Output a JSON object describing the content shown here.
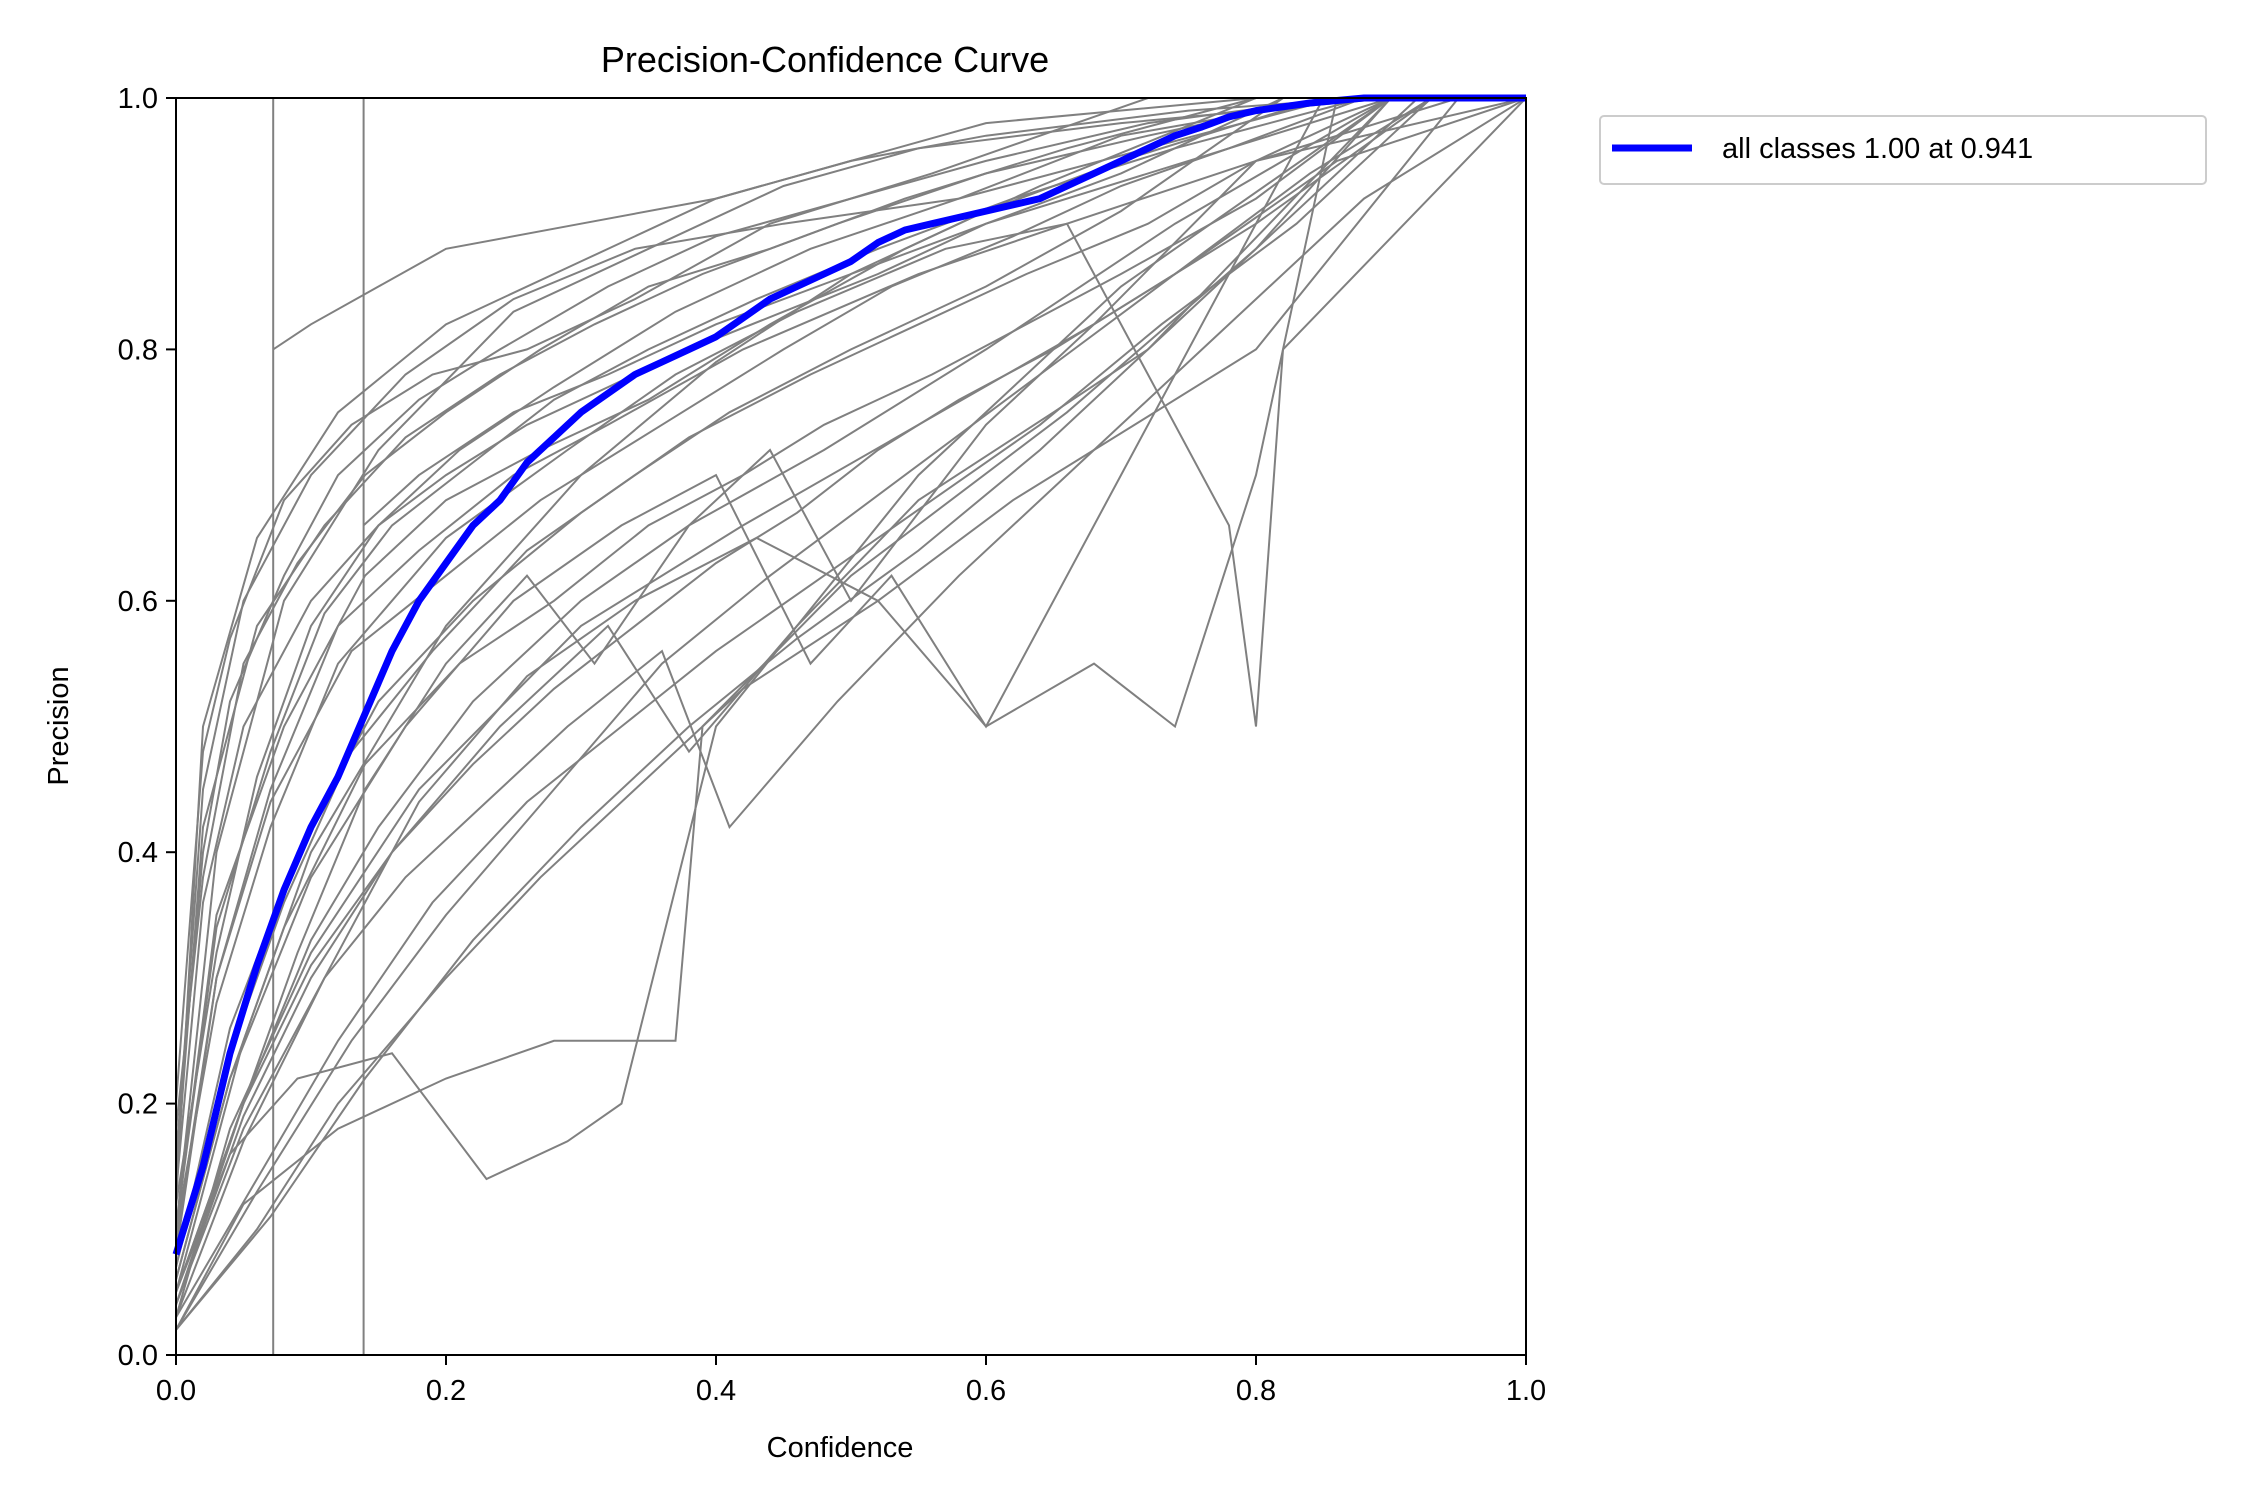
{
  "chart_data": {
    "type": "line",
    "title": "Precision-Confidence Curve",
    "xlabel": "Confidence",
    "ylabel": "Precision",
    "xlim": [
      0.0,
      1.0
    ],
    "ylim": [
      0.0,
      1.0
    ],
    "xticks": [
      "0.0",
      "0.2",
      "0.4",
      "0.6",
      "0.8",
      "1.0"
    ],
    "yticks": [
      "0.0",
      "0.2",
      "0.4",
      "0.6",
      "0.8",
      "1.0"
    ],
    "grid": false,
    "legend": {
      "placement": "outside-top-right",
      "entries": [
        "all classes 1.00 at 0.941"
      ]
    },
    "colors": {
      "per_class": "#808080",
      "all_classes": "#0000ff"
    },
    "series": [
      {
        "name": "all classes 1.00 at 0.941",
        "color": "#0000ff",
        "x": [
          0.0,
          0.02,
          0.04,
          0.06,
          0.08,
          0.1,
          0.12,
          0.14,
          0.16,
          0.18,
          0.2,
          0.22,
          0.24,
          0.26,
          0.28,
          0.3,
          0.32,
          0.34,
          0.36,
          0.38,
          0.4,
          0.42,
          0.44,
          0.46,
          0.48,
          0.5,
          0.52,
          0.54,
          0.56,
          0.58,
          0.6,
          0.62,
          0.64,
          0.66,
          0.68,
          0.7,
          0.72,
          0.74,
          0.76,
          0.78,
          0.8,
          0.82,
          0.84,
          0.86,
          0.88,
          0.9,
          0.92,
          0.941,
          0.96,
          0.98,
          1.0
        ],
        "y": [
          0.08,
          0.15,
          0.24,
          0.31,
          0.37,
          0.42,
          0.46,
          0.51,
          0.56,
          0.6,
          0.63,
          0.66,
          0.68,
          0.71,
          0.73,
          0.75,
          0.765,
          0.78,
          0.79,
          0.8,
          0.81,
          0.825,
          0.84,
          0.85,
          0.86,
          0.87,
          0.885,
          0.895,
          0.9,
          0.905,
          0.91,
          0.915,
          0.92,
          0.93,
          0.94,
          0.95,
          0.96,
          0.97,
          0.977,
          0.985,
          0.99,
          0.993,
          0.996,
          0.998,
          1.0,
          1.0,
          1.0,
          1.0,
          1.0,
          1.0,
          1.0
        ]
      }
    ],
    "per_class_curves": [
      {
        "x": [
          0,
          0.05,
          0.1,
          0.2,
          0.3,
          0.4,
          0.5,
          0.6,
          0.7,
          0.85,
          1.0
        ],
        "y": [
          0.05,
          0.25,
          0.4,
          0.58,
          0.7,
          0.79,
          0.86,
          0.91,
          0.95,
          1.0,
          1.0
        ]
      },
      {
        "x": [
          0,
          0.03,
          0.08,
          0.15,
          0.25,
          0.35,
          0.45,
          0.55,
          0.7,
          0.9,
          1.0
        ],
        "y": [
          0.1,
          0.4,
          0.6,
          0.72,
          0.83,
          0.88,
          0.93,
          0.96,
          0.98,
          1.0,
          1.0
        ]
      },
      {
        "x": [
          0,
          0.04,
          0.1,
          0.18,
          0.3,
          0.42,
          0.55,
          0.68,
          0.8,
          0.93,
          1.0
        ],
        "y": [
          0.03,
          0.18,
          0.32,
          0.45,
          0.58,
          0.66,
          0.74,
          0.82,
          0.9,
          1.0,
          1.0
        ]
      },
      {
        "x": [
          0,
          0.02,
          0.06,
          0.12,
          0.2,
          0.3,
          0.4,
          0.5,
          0.6,
          0.75,
          0.88,
          1.0
        ],
        "y": [
          0.12,
          0.5,
          0.65,
          0.75,
          0.82,
          0.87,
          0.92,
          0.95,
          0.97,
          0.99,
          1.0,
          1.0
        ]
      },
      {
        "x": [
          0,
          0.05,
          0.12,
          0.2,
          0.28,
          0.37,
          0.39,
          0.5,
          0.66,
          0.8,
          0.9,
          1.0
        ],
        "y": [
          0.02,
          0.12,
          0.18,
          0.22,
          0.25,
          0.25,
          0.5,
          0.62,
          0.75,
          0.88,
          1.0,
          1.0
        ]
      },
      {
        "x": [
          0,
          0.04,
          0.09,
          0.16,
          0.23,
          0.29,
          0.33,
          0.4,
          0.55,
          0.7,
          0.9,
          1.0
        ],
        "y": [
          0.05,
          0.16,
          0.22,
          0.24,
          0.14,
          0.17,
          0.2,
          0.5,
          0.7,
          0.85,
          1.0,
          1.0
        ]
      },
      {
        "x": [
          0,
          0.03,
          0.07,
          0.12,
          0.18,
          0.25,
          0.32,
          0.42,
          0.55,
          0.66,
          0.8,
          0.95,
          1.0
        ],
        "y": [
          0.08,
          0.3,
          0.45,
          0.58,
          0.64,
          0.7,
          0.74,
          0.8,
          0.86,
          0.9,
          0.95,
          1.0,
          1.0
        ]
      },
      {
        "x": [
          0,
          0.02,
          0.05,
          0.1,
          0.17,
          0.25,
          0.34,
          0.45,
          0.58,
          0.72,
          0.86,
          1.0
        ],
        "y": [
          0.15,
          0.45,
          0.6,
          0.7,
          0.78,
          0.84,
          0.88,
          0.9,
          0.92,
          0.96,
          1.0,
          1.0
        ]
      },
      {
        "x": [
          0,
          0.05,
          0.1,
          0.15,
          0.22,
          0.3,
          0.38,
          0.48,
          0.6,
          0.74,
          0.9,
          1.0
        ],
        "y": [
          0.04,
          0.2,
          0.33,
          0.42,
          0.52,
          0.6,
          0.66,
          0.72,
          0.8,
          0.9,
          1.0,
          1.0
        ]
      },
      {
        "x": [
          0,
          0.03,
          0.08,
          0.14,
          0.2,
          0.27,
          0.35,
          0.44,
          0.54,
          0.64,
          0.8,
          1.0
        ],
        "y": [
          0.1,
          0.35,
          0.5,
          0.62,
          0.68,
          0.72,
          0.76,
          0.82,
          0.88,
          0.93,
          1.0,
          1.0
        ]
      },
      {
        "x": [
          0,
          0.06,
          0.12,
          0.2,
          0.27,
          0.34,
          0.42,
          0.52,
          0.62,
          0.8,
          0.95,
          1.0
        ],
        "y": [
          0.02,
          0.1,
          0.2,
          0.3,
          0.38,
          0.45,
          0.53,
          0.6,
          0.68,
          0.8,
          1.0,
          1.0
        ]
      },
      {
        "x": [
          0,
          0.02,
          0.04,
          0.08,
          0.13,
          0.19,
          0.26,
          0.34,
          0.44,
          0.56,
          0.72,
          1.0
        ],
        "y": [
          0.2,
          0.48,
          0.57,
          0.68,
          0.74,
          0.78,
          0.8,
          0.84,
          0.9,
          0.94,
          1.0,
          1.0
        ]
      },
      {
        "x": [
          0,
          0.04,
          0.1,
          0.17,
          0.25,
          0.33,
          0.4,
          0.47,
          0.53,
          0.6,
          0.7,
          0.85,
          1.0
        ],
        "y": [
          0.06,
          0.22,
          0.38,
          0.5,
          0.6,
          0.66,
          0.7,
          0.55,
          0.62,
          0.5,
          0.7,
          1.0,
          1.0
        ]
      },
      {
        "x": [
          0,
          0.05,
          0.11,
          0.18,
          0.26,
          0.34,
          0.43,
          0.52,
          0.6,
          0.68,
          0.74,
          0.8,
          0.86,
          1.0
        ],
        "y": [
          0.03,
          0.17,
          0.3,
          0.44,
          0.54,
          0.6,
          0.65,
          0.6,
          0.5,
          0.55,
          0.5,
          0.7,
          1.0,
          1.0
        ]
      },
      {
        "x": [
          0,
          0.03,
          0.07,
          0.12,
          0.2,
          0.29,
          0.37,
          0.46,
          0.57,
          0.66,
          0.78,
          0.8,
          0.82,
          1.0
        ],
        "y": [
          0.1,
          0.28,
          0.42,
          0.55,
          0.65,
          0.72,
          0.78,
          0.83,
          0.88,
          0.9,
          0.66,
          0.5,
          0.8,
          1.0
        ]
      },
      {
        "x": [
          0,
          0.06,
          0.13,
          0.2,
          0.28,
          0.36,
          0.44,
          0.54,
          0.64,
          0.74,
          0.84,
          0.93,
          1.0
        ],
        "y": [
          0.02,
          0.13,
          0.25,
          0.35,
          0.45,
          0.55,
          0.62,
          0.7,
          0.78,
          0.86,
          0.94,
          1.0,
          1.0
        ]
      },
      {
        "x": [
          0,
          0.02,
          0.05,
          0.09,
          0.14,
          0.2,
          0.27,
          0.35,
          0.44,
          0.54,
          0.66,
          0.8,
          1.0
        ],
        "y": [
          0.18,
          0.38,
          0.55,
          0.63,
          0.7,
          0.75,
          0.8,
          0.85,
          0.88,
          0.92,
          0.96,
          1.0,
          1.0
        ]
      },
      {
        "x": [
          0,
          0.04,
          0.08,
          0.13,
          0.19,
          0.26,
          0.34,
          0.41,
          0.5,
          0.6,
          0.7,
          0.82,
          1.0
        ],
        "y": [
          0.07,
          0.24,
          0.36,
          0.48,
          0.56,
          0.64,
          0.7,
          0.75,
          0.8,
          0.85,
          0.91,
          1.0,
          1.0
        ]
      },
      {
        "x": [
          0,
          0.05,
          0.1,
          0.16,
          0.24,
          0.32,
          0.38,
          0.46,
          0.55,
          0.65,
          0.72,
          0.9,
          1.0
        ],
        "y": [
          0.04,
          0.19,
          0.3,
          0.4,
          0.5,
          0.58,
          0.48,
          0.58,
          0.68,
          0.75,
          0.8,
          1.0,
          1.0
        ]
      },
      {
        "x": [
          0,
          0.03,
          0.06,
          0.1,
          0.15,
          0.21,
          0.28,
          0.37,
          0.47,
          0.58,
          0.7,
          0.86,
          1.0
        ],
        "y": [
          0.12,
          0.32,
          0.46,
          0.58,
          0.66,
          0.72,
          0.77,
          0.83,
          0.88,
          0.92,
          0.97,
          1.0,
          1.0
        ]
      },
      {
        "x": [
          0,
          0.07,
          0.14,
          0.22,
          0.3,
          0.38,
          0.46,
          0.55,
          0.64,
          0.72,
          0.82,
          0.92,
          1.0
        ],
        "y": [
          0.02,
          0.11,
          0.22,
          0.33,
          0.42,
          0.5,
          0.57,
          0.64,
          0.72,
          0.8,
          0.9,
          1.0,
          1.0
        ]
      },
      {
        "x": [
          0,
          0.02,
          0.06,
          0.11,
          0.17,
          0.24,
          0.31,
          0.39,
          0.49,
          0.6,
          0.72,
          0.85,
          1.0
        ],
        "y": [
          0.14,
          0.42,
          0.58,
          0.66,
          0.73,
          0.78,
          0.82,
          0.86,
          0.9,
          0.94,
          0.97,
          1.0,
          1.0
        ]
      },
      {
        "x": [
          0,
          0.05,
          0.09,
          0.14,
          0.2,
          0.26,
          0.31,
          0.38,
          0.44,
          0.5,
          0.6,
          0.68,
          0.8,
          1.0
        ],
        "y": [
          0.05,
          0.2,
          0.32,
          0.45,
          0.55,
          0.62,
          0.55,
          0.66,
          0.72,
          0.6,
          0.74,
          0.82,
          0.95,
          1.0
        ]
      },
      {
        "x": [
          0,
          0.04,
          0.08,
          0.14,
          0.21,
          0.28,
          0.35,
          0.42,
          0.48,
          0.56,
          0.63,
          0.7,
          0.8,
          0.9,
          1.0
        ],
        "y": [
          0.06,
          0.22,
          0.34,
          0.47,
          0.55,
          0.6,
          0.66,
          0.7,
          0.74,
          0.78,
          0.82,
          0.86,
          0.92,
          1.0,
          1.0
        ]
      },
      {
        "x": [
          0,
          0.03,
          0.07,
          0.13,
          0.2,
          0.27,
          0.36,
          0.45,
          0.53,
          0.62,
          0.7,
          0.78,
          0.88,
          1.0
        ],
        "y": [
          0.09,
          0.3,
          0.44,
          0.56,
          0.62,
          0.68,
          0.74,
          0.8,
          0.85,
          0.89,
          0.93,
          0.96,
          1.0,
          1.0
        ]
      },
      {
        "x": [
          0,
          0.05,
          0.11,
          0.17,
          0.23,
          0.29,
          0.36,
          0.41,
          0.49,
          0.58,
          0.66,
          0.76,
          0.88,
          1.0
        ],
        "y": [
          0.04,
          0.18,
          0.3,
          0.38,
          0.44,
          0.5,
          0.56,
          0.42,
          0.52,
          0.62,
          0.7,
          0.8,
          0.92,
          1.0
        ]
      },
      {
        "x": [
          0,
          0.02,
          0.04,
          0.08,
          0.12,
          0.18,
          0.24,
          0.32,
          0.4,
          0.5,
          0.6,
          0.72,
          0.86,
          1.0
        ],
        "y": [
          0.16,
          0.4,
          0.52,
          0.62,
          0.7,
          0.76,
          0.8,
          0.85,
          0.89,
          0.92,
          0.95,
          0.98,
          1.0,
          1.0
        ]
      },
      {
        "x": [
          0,
          0.06,
          0.12,
          0.19,
          0.26,
          0.33,
          0.4,
          0.48,
          0.56,
          0.64,
          0.73,
          0.83,
          0.93,
          1.0
        ],
        "y": [
          0.03,
          0.14,
          0.25,
          0.36,
          0.44,
          0.5,
          0.56,
          0.62,
          0.68,
          0.74,
          0.82,
          0.9,
          1.0,
          1.0
        ]
      },
      {
        "x": [
          0,
          0.04,
          0.09,
          0.15,
          0.22,
          0.3,
          0.38,
          0.47,
          0.55,
          0.63,
          0.72,
          0.8,
          0.9,
          1.0
        ],
        "y": [
          0.07,
          0.26,
          0.4,
          0.52,
          0.6,
          0.67,
          0.73,
          0.78,
          0.82,
          0.86,
          0.9,
          0.95,
          1.0,
          1.0
        ]
      },
      {
        "x": [
          0,
          0.03,
          0.07,
          0.11,
          0.16,
          0.22,
          0.28,
          0.35,
          0.43,
          0.52,
          0.62,
          0.74,
          0.88,
          1.0
        ],
        "y": [
          0.1,
          0.34,
          0.48,
          0.59,
          0.66,
          0.71,
          0.76,
          0.8,
          0.84,
          0.88,
          0.92,
          0.96,
          1.0,
          1.0
        ]
      },
      {
        "x": [
          0,
          0.02,
          0.05,
          0.1,
          0.15,
          0.2,
          0.26,
          0.32,
          0.38,
          0.45,
          0.52,
          0.6,
          0.7,
          0.82,
          1.0
        ],
        "y": [
          0.13,
          0.36,
          0.5,
          0.6,
          0.66,
          0.7,
          0.74,
          0.77,
          0.8,
          0.83,
          0.86,
          0.9,
          0.94,
          1.0,
          1.0
        ]
      },
      {
        "x": [
          0,
          0.05,
          0.1,
          0.16,
          0.22,
          0.28,
          0.34,
          0.4,
          0.46,
          0.52,
          0.58,
          0.65,
          0.74,
          0.86,
          1.0
        ],
        "y": [
          0.05,
          0.2,
          0.31,
          0.4,
          0.47,
          0.53,
          0.58,
          0.63,
          0.67,
          0.72,
          0.76,
          0.8,
          0.86,
          0.95,
          1.0
        ]
      },
      {
        "x": [
          0,
          0.072,
          0.072,
          0.072,
          0.1,
          0.15,
          0.2,
          0.3,
          0.4,
          0.5,
          0.6,
          0.8,
          1.0
        ],
        "y": [
          0.0,
          0.0,
          1.0,
          0.8,
          0.82,
          0.85,
          0.88,
          0.9,
          0.92,
          0.95,
          0.98,
          1.0,
          1.0
        ]
      },
      {
        "x": [
          0,
          0.139,
          0.139,
          0.139,
          0.18,
          0.25,
          0.32,
          0.4,
          0.5,
          0.6,
          0.75,
          0.9,
          1.0
        ],
        "y": [
          0.0,
          0.0,
          1.0,
          0.66,
          0.7,
          0.75,
          0.78,
          0.82,
          0.86,
          0.9,
          0.95,
          1.0,
          1.0
        ]
      }
    ]
  }
}
